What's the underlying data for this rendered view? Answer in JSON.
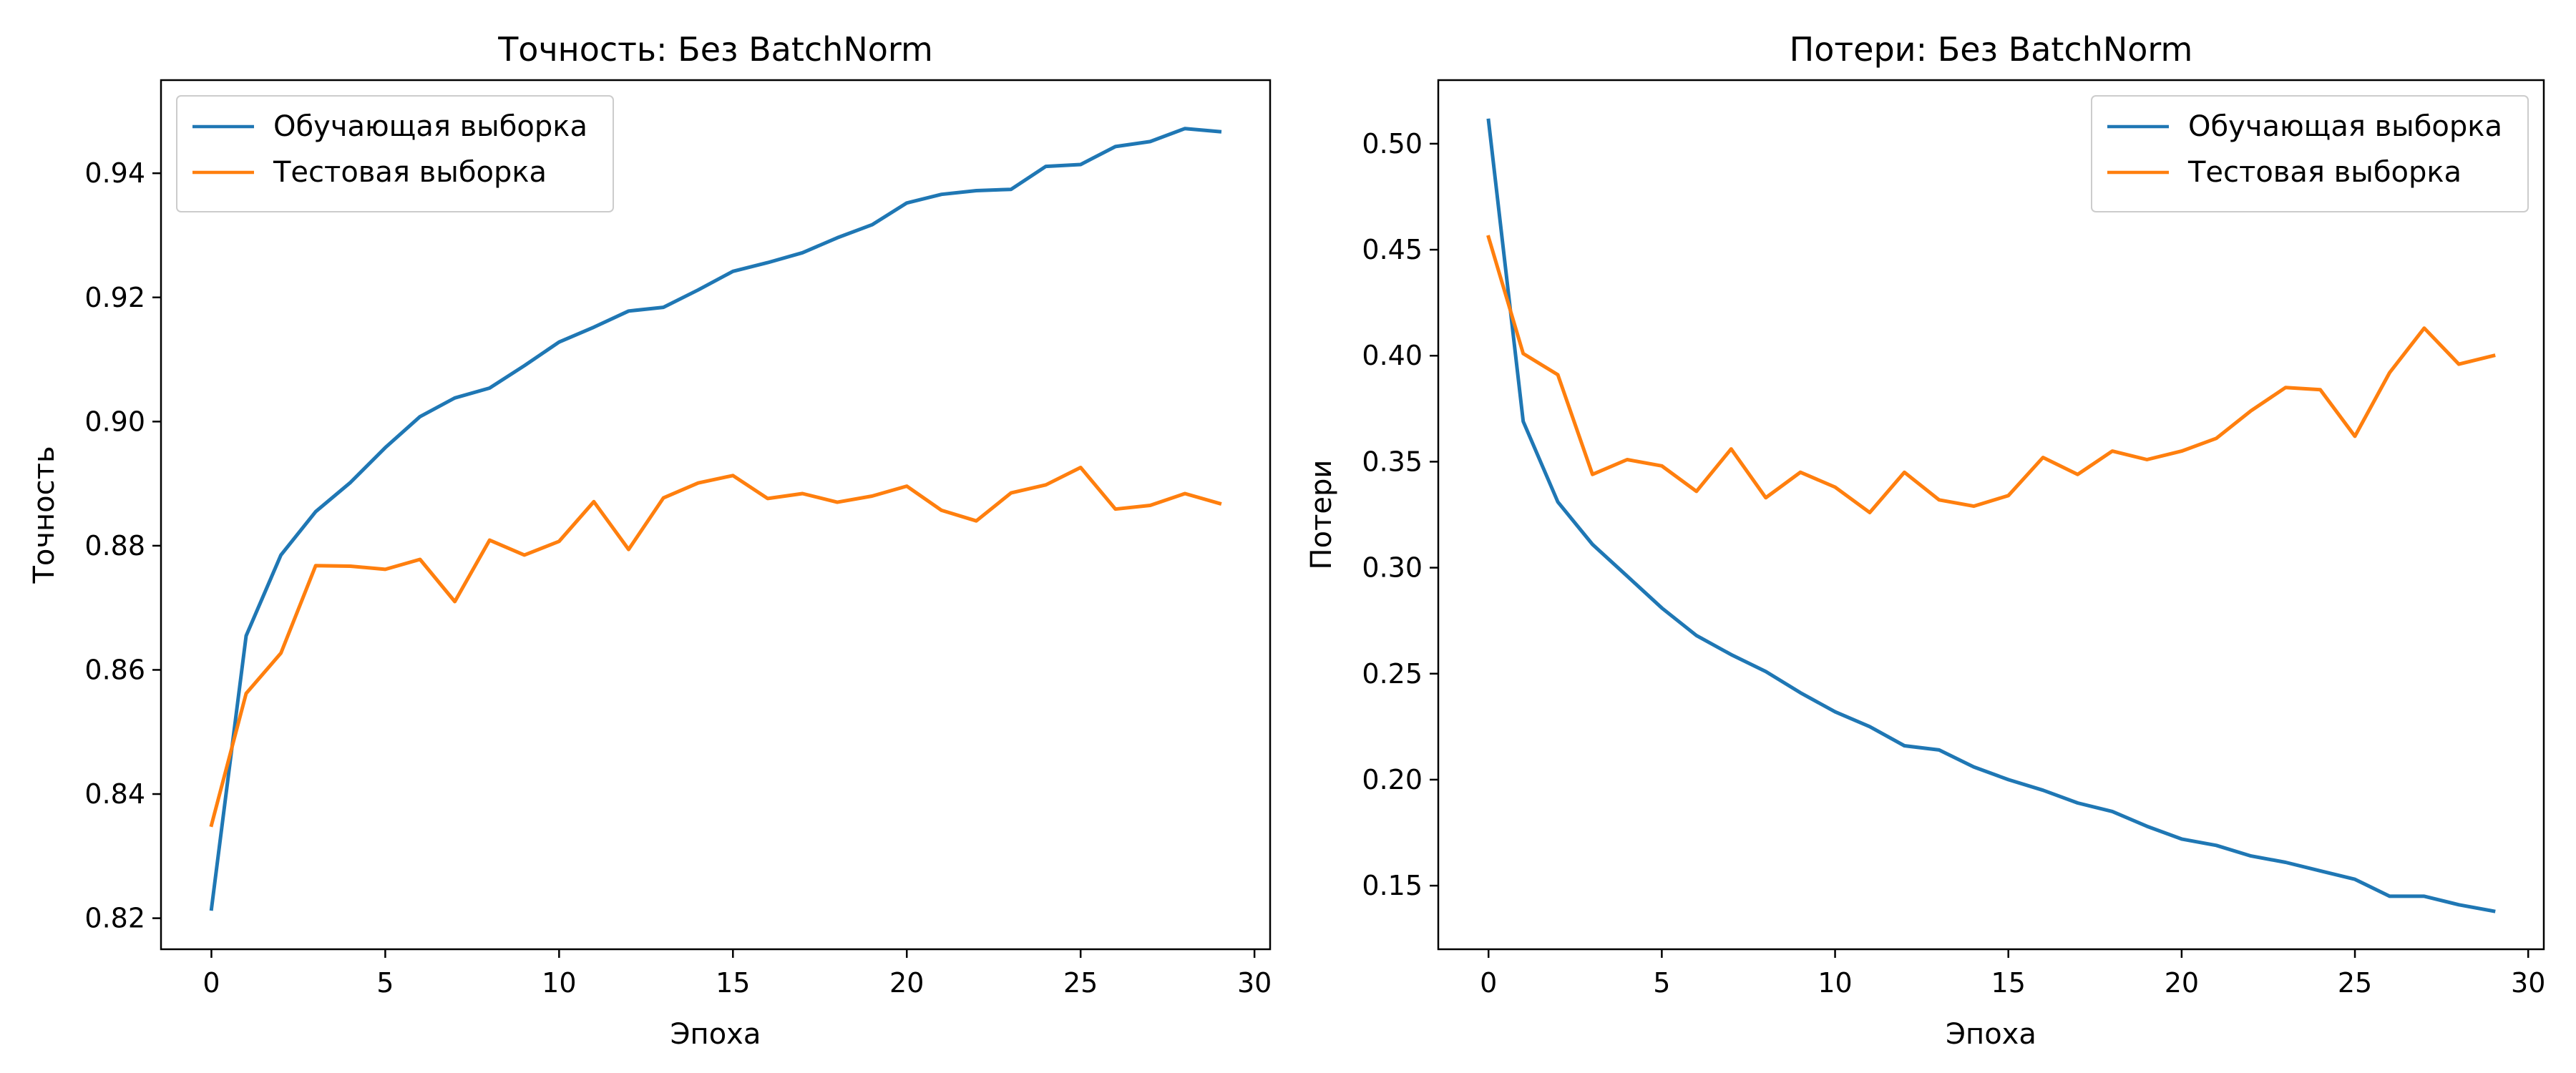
{
  "chart_data": [
    {
      "type": "line",
      "title": "Точность: Без BatchNorm",
      "xlabel": "Эпоха",
      "ylabel": "Точность",
      "xlim": [
        -1.45,
        30.45
      ],
      "ylim": [
        0.815,
        0.955
      ],
      "xticks": [
        0,
        5,
        10,
        15,
        20,
        25,
        30
      ],
      "yticks": [
        0.82,
        0.84,
        0.86,
        0.88,
        0.9,
        0.92,
        0.94
      ],
      "ytick_decimals": 2,
      "legend": "top-left",
      "grid": false,
      "x": [
        0,
        1,
        2,
        3,
        4,
        5,
        6,
        7,
        8,
        9,
        10,
        11,
        12,
        13,
        14,
        15,
        16,
        17,
        18,
        19,
        20,
        21,
        22,
        23,
        24,
        25,
        26,
        27,
        28,
        29
      ],
      "series": [
        {
          "name": "Обучающая выборка",
          "color": "#1f77b4",
          "values": [
            0.8215,
            0.8655,
            0.8785,
            0.8855,
            0.8902,
            0.8958,
            0.9008,
            0.9038,
            0.9054,
            0.909,
            0.9128,
            0.9152,
            0.9178,
            0.9184,
            0.9212,
            0.9242,
            0.9256,
            0.9272,
            0.9296,
            0.9317,
            0.9352,
            0.9366,
            0.9372,
            0.9374,
            0.9411,
            0.9414,
            0.9443,
            0.9451,
            0.9472,
            0.9467
          ]
        },
        {
          "name": "Тестовая выборка",
          "color": "#ff7f0e",
          "values": [
            0.835,
            0.8562,
            0.8627,
            0.8768,
            0.8767,
            0.8762,
            0.8778,
            0.871,
            0.8809,
            0.8785,
            0.8807,
            0.8871,
            0.8794,
            0.8877,
            0.8901,
            0.8913,
            0.8876,
            0.8884,
            0.887,
            0.888,
            0.8896,
            0.8857,
            0.884,
            0.8885,
            0.8898,
            0.8926,
            0.8859,
            0.8865,
            0.8884,
            0.8868
          ]
        }
      ]
    },
    {
      "type": "line",
      "title": "Потери: Без BatchNorm",
      "xlabel": "Эпоха",
      "ylabel": "Потери",
      "xlim": [
        -1.45,
        30.45
      ],
      "ylim": [
        0.12,
        0.53
      ],
      "xticks": [
        0,
        5,
        10,
        15,
        20,
        25,
        30
      ],
      "yticks": [
        0.15,
        0.2,
        0.25,
        0.3,
        0.35,
        0.4,
        0.45,
        0.5
      ],
      "ytick_decimals": 2,
      "legend": "top-right",
      "grid": false,
      "x": [
        0,
        1,
        2,
        3,
        4,
        5,
        6,
        7,
        8,
        9,
        10,
        11,
        12,
        13,
        14,
        15,
        16,
        17,
        18,
        19,
        20,
        21,
        22,
        23,
        24,
        25,
        26,
        27,
        28,
        29
      ],
      "series": [
        {
          "name": "Обучающая выборка",
          "color": "#1f77b4",
          "values": [
            0.511,
            0.369,
            0.331,
            0.311,
            0.296,
            0.281,
            0.268,
            0.259,
            0.251,
            0.241,
            0.232,
            0.225,
            0.216,
            0.214,
            0.206,
            0.2,
            0.195,
            0.189,
            0.185,
            0.178,
            0.172,
            0.169,
            0.164,
            0.161,
            0.157,
            0.153,
            0.145,
            0.145,
            0.141,
            0.138
          ]
        },
        {
          "name": "Тестовая выборка",
          "color": "#ff7f0e",
          "values": [
            0.456,
            0.401,
            0.391,
            0.344,
            0.351,
            0.348,
            0.336,
            0.356,
            0.333,
            0.345,
            0.338,
            0.326,
            0.345,
            0.332,
            0.329,
            0.334,
            0.352,
            0.344,
            0.355,
            0.351,
            0.355,
            0.361,
            0.374,
            0.385,
            0.384,
            0.362,
            0.392,
            0.413,
            0.396,
            0.4
          ]
        }
      ]
    }
  ]
}
